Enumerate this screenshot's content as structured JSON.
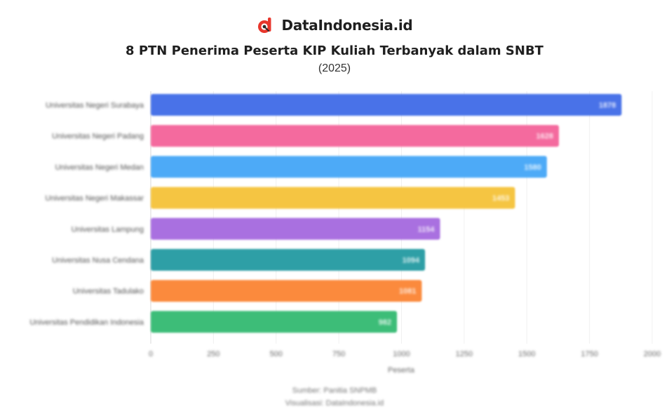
{
  "header": {
    "brand_name": "DataIndonesia.id",
    "brand_color": "#e8362c",
    "title": "8 PTN Penerima Peserta KIP Kuliah Terbanyak dalam SNBT",
    "subtitle": "(2025)"
  },
  "chart_data": {
    "type": "bar",
    "orientation": "horizontal",
    "categories": [
      "Universitas Negeri Surabaya",
      "Universitas Negeri Padang",
      "Universitas Negeri Medan",
      "Universitas Negeri Makassar",
      "Universitas Lampung",
      "Universitas Nusa Cendana",
      "Universitas Tadulako",
      "Universitas Pendidikan Indonesia"
    ],
    "values": [
      1878,
      1628,
      1580,
      1453,
      1154,
      1094,
      1081,
      982
    ],
    "colors": [
      "#4a72e8",
      "#f46b9e",
      "#4daaf7",
      "#f5c542",
      "#a96fe0",
      "#2f9fa6",
      "#fb8a3c",
      "#3dbd78"
    ],
    "xlim": [
      0,
      2000
    ],
    "xticks": [
      0,
      250,
      500,
      750,
      1000,
      1250,
      1500,
      1750,
      2000
    ],
    "xlabel": "Peserta",
    "grid": true,
    "data_labels": true
  },
  "footer": {
    "source": "Sumber: Panitia SNPMB",
    "credit": "Visualisasi: DataIndonesia.id"
  }
}
